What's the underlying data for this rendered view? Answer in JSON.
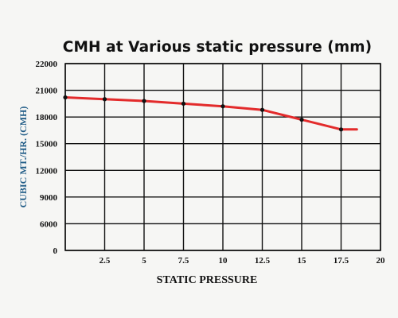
{
  "chart_data": {
    "type": "line",
    "title": "CMH at Various static pressure (mm)",
    "xlabel": "STATIC PRESSURE",
    "ylabel": "CUBIC MT./HR. (CMH)",
    "xlim": [
      0,
      20
    ],
    "ylim": [
      0,
      22000
    ],
    "x_ticks": [
      2.5,
      5,
      7.5,
      10,
      12.5,
      15,
      17.5,
      20
    ],
    "x_tick_labels": [
      "2.5",
      "5",
      "7.5",
      "10",
      "12.5",
      "15",
      "17.5",
      "20"
    ],
    "x_gridlines": [
      0,
      2.5,
      5,
      7.5,
      10,
      12.5,
      15,
      17.5,
      20
    ],
    "y_ticks": [
      0,
      6000,
      9000,
      12000,
      15000,
      18000,
      21000,
      22000
    ],
    "y_tick_labels": [
      "0",
      "6000",
      "9000",
      "12000",
      "15000",
      "18000",
      "21000",
      "22000"
    ],
    "grid": true,
    "series": [
      {
        "color": "#e32b2b",
        "marker_color": "#111111",
        "x": [
          0,
          2.5,
          5,
          7.5,
          10,
          12.5,
          15,
          17.5
        ],
        "y": [
          20200,
          20000,
          19800,
          19500,
          19200,
          18800,
          17700,
          16600
        ],
        "line_end": {
          "x": 18.5,
          "y": 16600
        }
      }
    ]
  }
}
